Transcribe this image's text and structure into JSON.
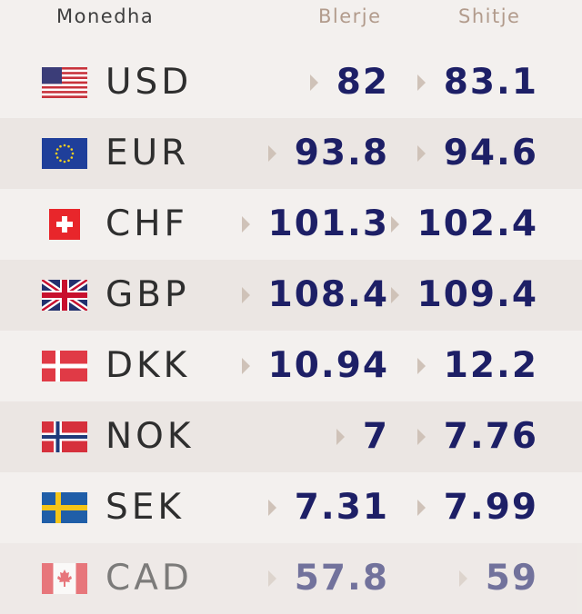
{
  "header": {
    "currency": "Monedha",
    "buy": "Blerje",
    "sell": "Shitje"
  },
  "rows": [
    {
      "code": "USD",
      "buy": 82,
      "sell": 83.1
    },
    {
      "code": "EUR",
      "buy": 93.8,
      "sell": 94.6
    },
    {
      "code": "CHF",
      "buy": 101.3,
      "sell": 102.4
    },
    {
      "code": "GBP",
      "buy": 108.4,
      "sell": 109.4
    },
    {
      "code": "DKK",
      "buy": 10.94,
      "sell": 12.2
    },
    {
      "code": "NOK",
      "buy": 7,
      "sell": 7.76
    },
    {
      "code": "SEK",
      "buy": 7.31,
      "sell": 7.99
    },
    {
      "code": "CAD",
      "buy": 57.8,
      "sell": 59
    }
  ]
}
